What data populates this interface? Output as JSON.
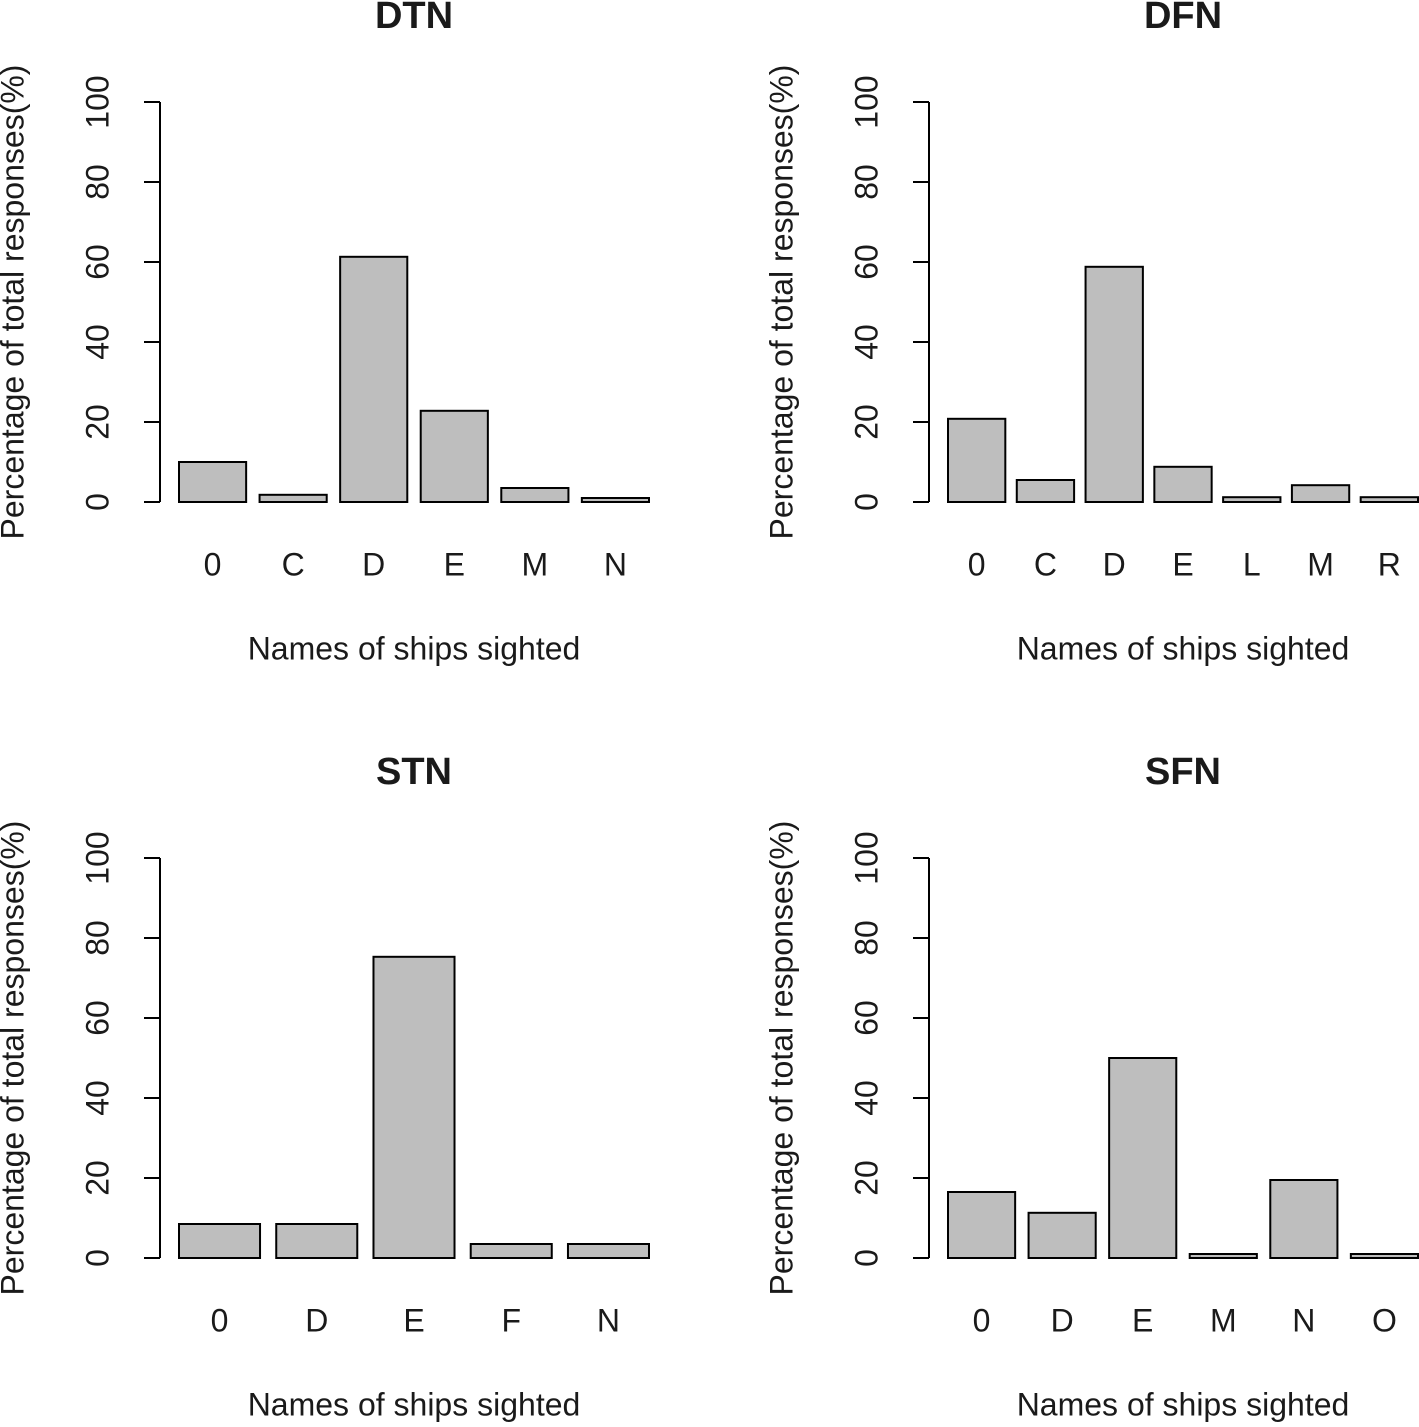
{
  "chart_data": [
    {
      "type": "bar",
      "title": "DTN",
      "xlabel": "Names of ships sighted",
      "ylabel": "Percentage of total responses(%)",
      "categories": [
        "0",
        "C",
        "D",
        "E",
        "M",
        "N"
      ],
      "values": [
        10,
        1.8,
        61.3,
        22.8,
        3.5,
        1
      ],
      "color": "#bebebe",
      "ylim": [
        0,
        100
      ],
      "yticks": [
        0,
        20,
        40,
        60,
        80,
        100
      ]
    },
    {
      "type": "bar",
      "title": "DFN",
      "xlabel": "Names of ships sighted",
      "ylabel": "Percentage of total responses(%)",
      "categories": [
        "0",
        "C",
        "D",
        "E",
        "L",
        "M",
        "R"
      ],
      "values": [
        20.8,
        5.5,
        58.8,
        8.8,
        1.2,
        4.2,
        1.2
      ],
      "color": "#bebebe",
      "ylim": [
        0,
        100
      ],
      "yticks": [
        0,
        20,
        40,
        60,
        80,
        100
      ]
    },
    {
      "type": "bar",
      "title": "STN",
      "xlabel": "Names of ships sighted",
      "ylabel": "Percentage of total responses(%)",
      "categories": [
        "0",
        "D",
        "E",
        "F",
        "N"
      ],
      "values": [
        8.5,
        8.5,
        75.3,
        3.5,
        3.5
      ],
      "color": "#bebebe",
      "ylim": [
        0,
        100
      ],
      "yticks": [
        0,
        20,
        40,
        60,
        80,
        100
      ]
    },
    {
      "type": "bar",
      "title": "SFN",
      "xlabel": "Names of ships sighted",
      "ylabel": "Percentage of total responses(%)",
      "categories": [
        "0",
        "D",
        "E",
        "M",
        "N",
        "O"
      ],
      "values": [
        16.5,
        11.3,
        50,
        1,
        19.5,
        1
      ],
      "color": "#bebebe",
      "ylim": [
        0,
        100
      ],
      "yticks": [
        0,
        20,
        40,
        60,
        80,
        100
      ]
    }
  ]
}
